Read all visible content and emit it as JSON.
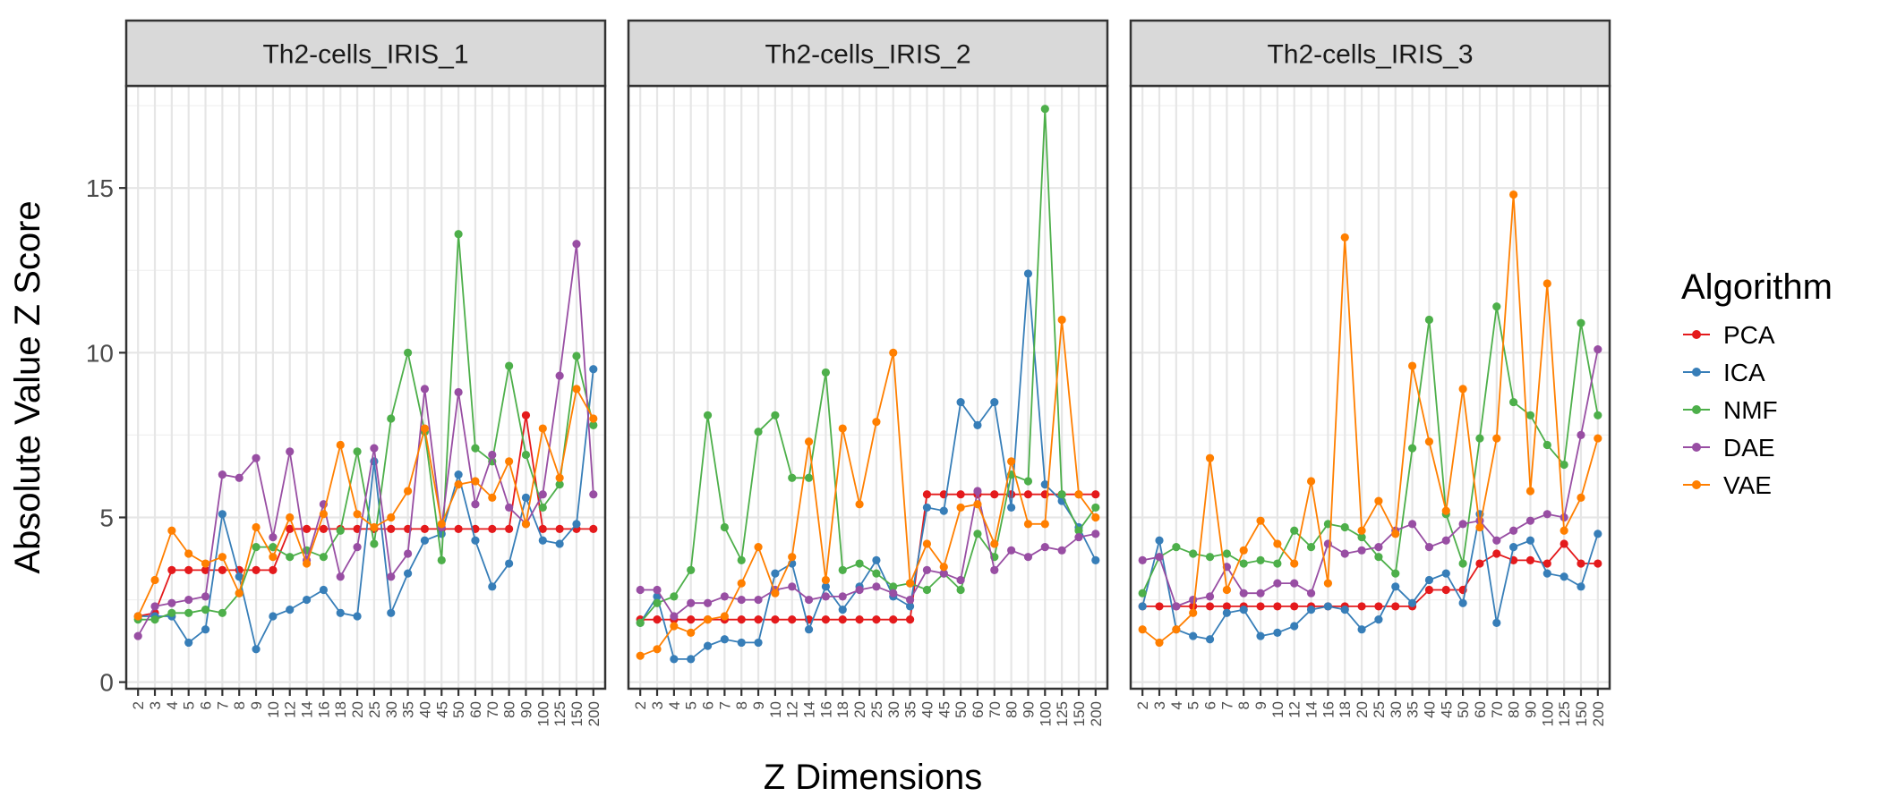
{
  "chart_data": {
    "type": "line",
    "ylabel": "Absolute Value Z Score",
    "xlabel": "Z Dimensions",
    "yticks": [
      0,
      5,
      10,
      15
    ],
    "ylim": [
      -0.2,
      18.1
    ],
    "grid": true,
    "legend_position": "right",
    "legend_title": "Algorithm",
    "x": [
      "2",
      "3",
      "4",
      "5",
      "6",
      "7",
      "8",
      "9",
      "10",
      "12",
      "14",
      "16",
      "18",
      "20",
      "25",
      "30",
      "35",
      "40",
      "45",
      "50",
      "60",
      "70",
      "80",
      "90",
      "100",
      "125",
      "150",
      "200"
    ],
    "series_colors": {
      "PCA": "#e41a1c",
      "ICA": "#377eb8",
      "NMF": "#4daf4a",
      "DAE": "#984ea3",
      "VAE": "#ff7f00"
    },
    "series_names": [
      "PCA",
      "ICA",
      "NMF",
      "DAE",
      "VAE"
    ],
    "panels": [
      {
        "title": "Th2-cells_IRIS_1",
        "series": [
          {
            "name": "PCA",
            "values": [
              2.0,
              2.1,
              3.4,
              3.4,
              3.4,
              3.4,
              3.4,
              3.4,
              3.4,
              4.65,
              4.65,
              4.65,
              4.65,
              4.65,
              4.65,
              4.65,
              4.65,
              4.65,
              4.65,
              4.65,
              4.65,
              4.65,
              4.65,
              8.1,
              4.65,
              4.65,
              4.65,
              4.65
            ]
          },
          {
            "name": "ICA",
            "values": [
              2.0,
              2.0,
              2.0,
              1.2,
              1.6,
              5.1,
              3.2,
              1.0,
              2.0,
              2.2,
              2.5,
              2.8,
              2.1,
              2.0,
              6.7,
              2.1,
              3.3,
              4.3,
              4.5,
              6.3,
              4.3,
              2.9,
              3.6,
              5.6,
              4.3,
              4.2,
              4.8,
              9.5
            ]
          },
          {
            "name": "NMF",
            "values": [
              1.9,
              1.9,
              2.1,
              2.1,
              2.2,
              2.1,
              2.7,
              4.1,
              4.1,
              3.8,
              4.0,
              3.8,
              4.6,
              7.0,
              4.2,
              8.0,
              10.0,
              7.6,
              3.7,
              13.6,
              7.1,
              6.7,
              9.6,
              6.9,
              5.3,
              6.0,
              9.9,
              7.8
            ]
          },
          {
            "name": "DAE",
            "values": [
              1.4,
              2.3,
              2.4,
              2.5,
              2.6,
              6.3,
              6.2,
              6.8,
              4.4,
              7.0,
              3.7,
              5.4,
              3.2,
              4.1,
              7.1,
              3.2,
              3.9,
              8.9,
              4.7,
              8.8,
              5.4,
              6.9,
              5.3,
              4.8,
              5.7,
              9.3,
              13.3,
              5.7
            ]
          },
          {
            "name": "VAE",
            "values": [
              2.0,
              3.1,
              4.6,
              3.9,
              3.6,
              3.8,
              2.7,
              4.7,
              3.8,
              5.0,
              3.6,
              5.1,
              7.2,
              5.1,
              4.7,
              5.0,
              5.8,
              7.7,
              4.8,
              6.0,
              6.1,
              5.6,
              6.7,
              4.8,
              7.7,
              6.2,
              8.9,
              8.0
            ]
          }
        ]
      },
      {
        "title": "Th2-cells_IRIS_2",
        "series": [
          {
            "name": "PCA",
            "values": [
              1.9,
              1.9,
              1.9,
              1.9,
              1.9,
              1.9,
              1.9,
              1.9,
              1.9,
              1.9,
              1.9,
              1.9,
              1.9,
              1.9,
              1.9,
              1.9,
              1.9,
              5.7,
              5.7,
              5.7,
              5.7,
              5.7,
              5.7,
              5.7,
              5.7,
              5.7,
              5.7,
              5.7
            ]
          },
          {
            "name": "ICA",
            "values": [
              1.8,
              2.6,
              0.7,
              0.7,
              1.1,
              1.3,
              1.2,
              1.2,
              3.3,
              3.6,
              1.6,
              2.9,
              2.2,
              2.9,
              3.7,
              2.6,
              2.3,
              5.3,
              5.2,
              8.5,
              7.8,
              8.5,
              5.3,
              12.4,
              6.0,
              5.5,
              4.7,
              3.7
            ]
          },
          {
            "name": "NMF",
            "values": [
              1.8,
              2.4,
              2.6,
              3.4,
              8.1,
              4.7,
              3.7,
              7.6,
              8.1,
              6.2,
              6.2,
              9.4,
              3.4,
              3.6,
              3.3,
              2.9,
              3.0,
              2.8,
              3.3,
              2.8,
              4.5,
              3.8,
              6.3,
              6.1,
              17.4,
              5.7,
              4.6,
              5.3
            ]
          },
          {
            "name": "DAE",
            "values": [
              2.8,
              2.8,
              2.0,
              2.4,
              2.4,
              2.6,
              2.5,
              2.5,
              2.8,
              2.9,
              2.5,
              2.6,
              2.6,
              2.8,
              2.9,
              2.7,
              2.5,
              3.4,
              3.3,
              3.1,
              5.8,
              3.4,
              4.0,
              3.8,
              4.1,
              4.0,
              4.4,
              4.5
            ]
          },
          {
            "name": "VAE",
            "values": [
              0.8,
              1.0,
              1.7,
              1.5,
              1.9,
              2.0,
              3.0,
              4.1,
              2.7,
              3.8,
              7.3,
              3.1,
              7.7,
              5.4,
              7.9,
              10.0,
              3.0,
              4.2,
              3.5,
              5.3,
              5.4,
              4.2,
              6.7,
              4.8,
              4.8,
              11.0,
              5.7,
              5.0
            ]
          }
        ]
      },
      {
        "title": "Th2-cells_IRIS_3",
        "series": [
          {
            "name": "PCA",
            "values": [
              2.3,
              2.3,
              2.3,
              2.3,
              2.3,
              2.3,
              2.3,
              2.3,
              2.3,
              2.3,
              2.3,
              2.3,
              2.3,
              2.3,
              2.3,
              2.3,
              2.3,
              2.8,
              2.8,
              2.8,
              3.6,
              3.9,
              3.7,
              3.7,
              3.6,
              4.2,
              3.6,
              3.6
            ]
          },
          {
            "name": "ICA",
            "values": [
              2.3,
              4.3,
              1.6,
              1.4,
              1.3,
              2.1,
              2.2,
              1.4,
              1.5,
              1.7,
              2.2,
              2.3,
              2.2,
              1.6,
              1.9,
              2.9,
              2.4,
              3.1,
              3.3,
              2.4,
              5.1,
              1.8,
              4.1,
              4.3,
              3.3,
              3.2,
              2.9,
              4.5
            ]
          },
          {
            "name": "NMF",
            "values": [
              2.7,
              3.8,
              4.1,
              3.9,
              3.8,
              3.9,
              3.6,
              3.7,
              3.6,
              4.6,
              4.1,
              4.8,
              4.7,
              4.4,
              3.8,
              3.3,
              7.1,
              11.0,
              5.1,
              3.6,
              7.4,
              11.4,
              8.5,
              8.1,
              7.2,
              6.6,
              10.9,
              8.1
            ]
          },
          {
            "name": "DAE",
            "values": [
              3.7,
              3.8,
              2.3,
              2.5,
              2.6,
              3.5,
              2.7,
              2.7,
              3.0,
              3.0,
              2.7,
              4.2,
              3.9,
              4.0,
              4.1,
              4.6,
              4.8,
              4.1,
              4.3,
              4.8,
              4.9,
              4.3,
              4.6,
              4.9,
              5.1,
              5.0,
              7.5,
              10.1
            ]
          },
          {
            "name": "VAE",
            "values": [
              1.6,
              1.2,
              1.6,
              2.1,
              6.8,
              2.8,
              4.0,
              4.9,
              4.2,
              3.6,
              6.1,
              3.0,
              13.5,
              4.6,
              5.5,
              4.5,
              9.6,
              7.3,
              5.2,
              8.9,
              4.7,
              7.4,
              14.8,
              5.8,
              12.1,
              4.6,
              5.6,
              7.4
            ]
          }
        ]
      }
    ]
  }
}
